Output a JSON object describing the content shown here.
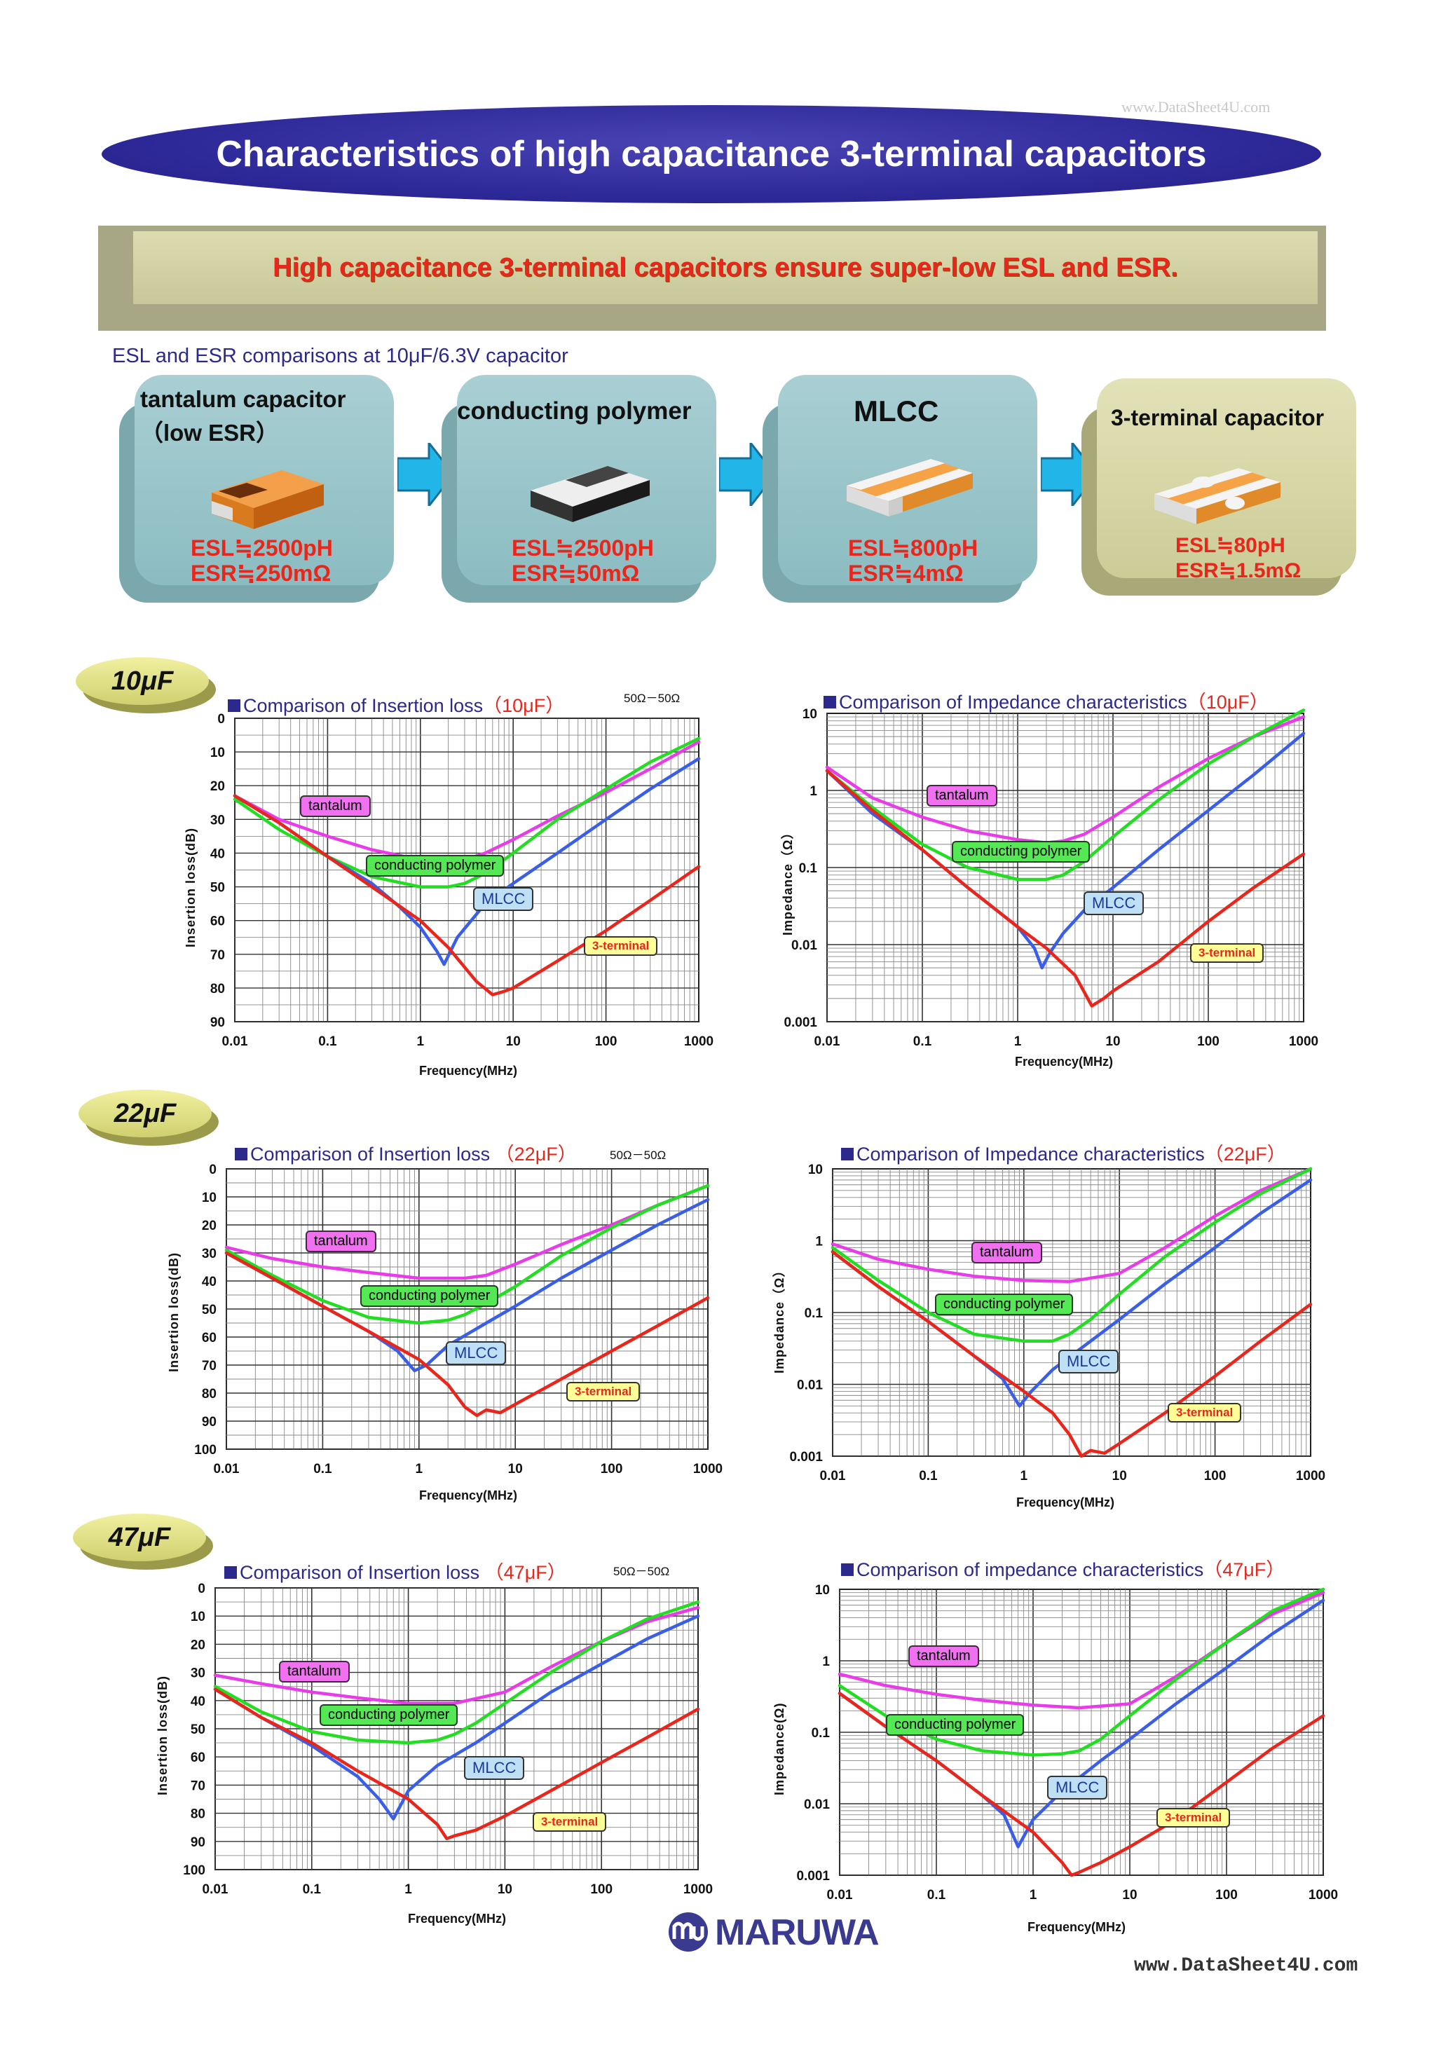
{
  "watermark_top": "www.DataSheet4U.com",
  "banner_title": "Characteristics of high capacitance 3-terminal capacitors",
  "subtitle_bar": "High capacitance 3-terminal capacitors ensure super-low ESL and ESR.",
  "comparison_title": "ESL and ESR comparisons at 10μF/6.3V capacitor",
  "cards": [
    {
      "title1": "tantalum capacitor",
      "title2": "（low ESR）",
      "esl": "ESL≒2500pH",
      "esr": "ESR≒250mΩ"
    },
    {
      "title1": "conducting polymer",
      "title2": "",
      "esl": "ESL≒2500pH",
      "esr": "ESR≒50mΩ"
    },
    {
      "title1": "MLCC",
      "title2": "",
      "esl": "ESL≒800pH",
      "esr": "ESR≒4mΩ"
    },
    {
      "title1": "3-terminal capacitor",
      "title2": "",
      "esl": "ESL≒80pH",
      "esr": "ESR≒1.5mΩ"
    }
  ],
  "colors": {
    "tantalum": "#e83ce8",
    "polymer": "#22dd22",
    "mlcc": "#3a5ee8",
    "mlcc_dark": "#1a2ad0",
    "three_terminal": "#e8261b",
    "banner": "#2f2a9a",
    "card_blue": "#9cc4c8",
    "card_olive": "#d8d8a8"
  },
  "icons": [
    "arrow-right-icon",
    "tantalum-chip-icon",
    "polymer-chip-icon",
    "mlcc-chip-icon",
    "three-terminal-chip-icon",
    "maruwa-logo-icon"
  ],
  "series_labels": {
    "tantalum": "tantalum",
    "polymer": "conducting polymer",
    "mlcc": "MLCC",
    "three_terminal": "3-terminal"
  },
  "rows": [
    {
      "badge": "10μF",
      "il_title_pre": "Comparison of Insertion loss",
      "il_title_val": "（10μF）",
      "il_condition": "50Ω－50Ω",
      "imp_title_pre": "Comparison of Impedance characteristics",
      "imp_title_val": "（10μF）"
    },
    {
      "badge": "22μF",
      "il_title_pre": "Comparison of Insertion loss ",
      "il_title_val": "（22μF）",
      "il_condition": "50Ω－50Ω",
      "imp_title_pre": "Comparison of Impedance characteristics",
      "imp_title_val": "（22μF）"
    },
    {
      "badge": "47μF",
      "il_title_pre": "Comparison of Insertion loss ",
      "il_title_val": "（47μF）",
      "il_condition": "50Ω－50Ω",
      "imp_title_pre": "Comparison of impedance characteristics",
      "imp_title_val": "（47μF）"
    }
  ],
  "axes": {
    "il_ylabel": "Insertion loss(dB)",
    "imp_ylabel": "Impedance（Ω）",
    "imp_ylabel_alt": "Impedance(Ω)",
    "xlabel": "Frequency(MHz)",
    "x_ticks": [
      "0.01",
      "0.1",
      "1",
      "10",
      "100",
      "1000"
    ],
    "il_ticks_90": [
      "0",
      "10",
      "20",
      "30",
      "40",
      "50",
      "60",
      "70",
      "80",
      "90"
    ],
    "il_ticks_100": [
      "0",
      "10",
      "20",
      "30",
      "40",
      "50",
      "60",
      "70",
      "80",
      "90",
      "100"
    ],
    "imp_ticks": [
      "10",
      "1",
      "0.1",
      "0.01",
      "0.001"
    ]
  },
  "chart_data": [
    {
      "type": "line",
      "title": "Comparison of Insertion loss（10μF）",
      "xlabel": "Frequency(MHz)",
      "ylabel": "Insertion loss(dB)",
      "x_scale": "log",
      "xlim": [
        0.01,
        1000
      ],
      "ylim": [
        0,
        90
      ],
      "y_inverted": true,
      "series": [
        {
          "name": "tantalum",
          "x": [
            0.01,
            0.03,
            0.1,
            0.3,
            1,
            2,
            3,
            5,
            10,
            30,
            100,
            300,
            1000
          ],
          "y": [
            23,
            30,
            35,
            39,
            42,
            43,
            42,
            40,
            36,
            29,
            22,
            15,
            7
          ]
        },
        {
          "name": "conducting polymer",
          "x": [
            0.01,
            0.03,
            0.1,
            0.3,
            1,
            2,
            3,
            5,
            10,
            30,
            100,
            300,
            1000
          ],
          "y": [
            24,
            33,
            41,
            47,
            50,
            50,
            49,
            46,
            40,
            30,
            21,
            13,
            6
          ]
        },
        {
          "name": "MLCC",
          "x": [
            0.01,
            0.03,
            0.1,
            0.3,
            0.6,
            1,
            1.5,
            1.8,
            2.5,
            5,
            10,
            30,
            100,
            300,
            1000
          ],
          "y": [
            23,
            31,
            41,
            49,
            56,
            62,
            69,
            73,
            65,
            55,
            49,
            40,
            30,
            21,
            12
          ]
        },
        {
          "name": "3-terminal",
          "x": [
            0.01,
            0.03,
            0.1,
            0.3,
            1,
            2,
            4,
            6,
            8,
            10,
            30,
            100,
            300,
            1000
          ],
          "y": [
            23,
            31,
            41,
            50,
            60,
            68,
            78,
            82,
            81,
            80,
            72,
            63,
            54,
            44
          ]
        }
      ]
    },
    {
      "type": "line",
      "title": "Comparison of Impedance characteristics（10μF）",
      "xlabel": "Frequency(MHz)",
      "ylabel": "Impedance（Ω）",
      "x_scale": "log",
      "y_scale": "log",
      "xlim": [
        0.01,
        1000
      ],
      "ylim": [
        0.001,
        10
      ],
      "series": [
        {
          "name": "tantalum",
          "x": [
            0.01,
            0.03,
            0.1,
            0.3,
            1,
            2,
            3,
            5,
            10,
            30,
            100,
            300,
            1000
          ],
          "y": [
            2,
            0.8,
            0.45,
            0.3,
            0.23,
            0.21,
            0.22,
            0.27,
            0.45,
            1.1,
            2.6,
            5,
            9
          ]
        },
        {
          "name": "conducting polymer",
          "x": [
            0.01,
            0.03,
            0.1,
            0.3,
            1,
            2,
            3,
            5,
            10,
            30,
            100,
            300,
            1000
          ],
          "y": [
            1.8,
            0.6,
            0.2,
            0.1,
            0.07,
            0.07,
            0.08,
            0.12,
            0.25,
            0.75,
            2.2,
            5,
            11
          ]
        },
        {
          "name": "MLCC",
          "x": [
            0.01,
            0.03,
            0.1,
            0.3,
            1,
            1.5,
            1.8,
            2.2,
            3,
            5,
            10,
            30,
            100,
            300,
            1000
          ],
          "y": [
            1.8,
            0.5,
            0.17,
            0.055,
            0.017,
            0.009,
            0.005,
            0.008,
            0.014,
            0.028,
            0.055,
            0.17,
            0.55,
            1.6,
            5.5
          ]
        },
        {
          "name": "3-terminal",
          "x": [
            0.01,
            0.03,
            0.1,
            0.3,
            1,
            2,
            4,
            6,
            8,
            10,
            30,
            100,
            300,
            1000
          ],
          "y": [
            1.8,
            0.55,
            0.17,
            0.055,
            0.017,
            0.009,
            0.004,
            0.0016,
            0.002,
            0.0025,
            0.006,
            0.02,
            0.055,
            0.15
          ]
        }
      ]
    },
    {
      "type": "line",
      "title": "Comparison of Insertion loss（22μF）",
      "xlabel": "Frequency(MHz)",
      "ylabel": "Insertion loss(dB)",
      "x_scale": "log",
      "xlim": [
        0.01,
        1000
      ],
      "ylim": [
        0,
        100
      ],
      "y_inverted": true,
      "series": [
        {
          "name": "tantalum",
          "x": [
            0.01,
            0.03,
            0.1,
            0.3,
            1,
            2,
            3,
            5,
            10,
            30,
            100,
            300,
            1000
          ],
          "y": [
            28,
            32,
            35,
            37,
            39,
            39,
            39,
            38,
            34,
            27,
            20,
            13,
            6
          ]
        },
        {
          "name": "conducting polymer",
          "x": [
            0.01,
            0.03,
            0.1,
            0.3,
            1,
            2,
            3,
            5,
            10,
            30,
            100,
            300,
            1000
          ],
          "y": [
            29,
            38,
            47,
            53,
            55,
            54,
            52,
            48,
            42,
            31,
            21,
            13,
            6
          ]
        },
        {
          "name": "MLCC",
          "x": [
            0.01,
            0.03,
            0.1,
            0.3,
            0.6,
            0.9,
            1.2,
            2,
            5,
            10,
            30,
            100,
            300,
            1000
          ],
          "y": [
            30,
            39,
            49,
            58,
            65,
            72,
            70,
            63,
            55,
            49,
            39,
            29,
            20,
            11
          ]
        },
        {
          "name": "3-terminal",
          "x": [
            0.01,
            0.03,
            0.1,
            0.3,
            1,
            2,
            3,
            4,
            5,
            7,
            10,
            30,
            100,
            300,
            1000
          ],
          "y": [
            30,
            39,
            49,
            58,
            68,
            77,
            85,
            88,
            86,
            87,
            84,
            75,
            65,
            56,
            46
          ]
        }
      ]
    },
    {
      "type": "line",
      "title": "Comparison of Impedance characteristics（22μF）",
      "xlabel": "Frequency(MHz)",
      "ylabel": "Impedance（Ω）",
      "x_scale": "log",
      "y_scale": "log",
      "xlim": [
        0.01,
        1000
      ],
      "ylim": [
        0.001,
        10
      ],
      "series": [
        {
          "name": "tantalum",
          "x": [
            0.01,
            0.03,
            0.1,
            0.3,
            1,
            3,
            10,
            30,
            100,
            300,
            1000
          ],
          "y": [
            0.9,
            0.55,
            0.4,
            0.32,
            0.28,
            0.27,
            0.35,
            0.8,
            2.2,
            5,
            10
          ]
        },
        {
          "name": "conducting polymer",
          "x": [
            0.01,
            0.03,
            0.1,
            0.3,
            1,
            2,
            3,
            5,
            10,
            30,
            100,
            300,
            1000
          ],
          "y": [
            0.8,
            0.28,
            0.1,
            0.05,
            0.04,
            0.04,
            0.05,
            0.08,
            0.18,
            0.6,
            1.8,
            4.5,
            10
          ]
        },
        {
          "name": "MLCC",
          "x": [
            0.01,
            0.03,
            0.1,
            0.3,
            0.6,
            0.9,
            1.2,
            2,
            5,
            10,
            30,
            100,
            300,
            1000
          ],
          "y": [
            0.7,
            0.23,
            0.075,
            0.025,
            0.012,
            0.005,
            0.008,
            0.016,
            0.04,
            0.08,
            0.25,
            0.8,
            2.4,
            7
          ]
        },
        {
          "name": "3-terminal",
          "x": [
            0.01,
            0.03,
            0.1,
            0.3,
            1,
            2,
            3,
            4,
            5,
            7,
            10,
            30,
            100,
            300,
            1000
          ],
          "y": [
            0.7,
            0.23,
            0.075,
            0.025,
            0.008,
            0.004,
            0.002,
            0.001,
            0.0012,
            0.0011,
            0.0015,
            0.004,
            0.013,
            0.04,
            0.13
          ]
        }
      ]
    },
    {
      "type": "line",
      "title": "Comparison of Insertion loss（47μF）",
      "xlabel": "Frequency(MHz)",
      "ylabel": "Insertion loss(dB)",
      "x_scale": "log",
      "xlim": [
        0.01,
        1000
      ],
      "ylim": [
        0,
        100
      ],
      "y_inverted": true,
      "series": [
        {
          "name": "tantalum",
          "x": [
            0.01,
            0.03,
            0.1,
            0.3,
            1,
            3,
            10,
            30,
            100,
            300,
            1000
          ],
          "y": [
            31,
            34,
            37,
            39,
            41,
            41,
            37,
            28,
            19,
            12,
            7
          ]
        },
        {
          "name": "conducting polymer",
          "x": [
            0.01,
            0.03,
            0.1,
            0.3,
            1,
            2,
            3,
            5,
            10,
            30,
            100,
            300,
            1000
          ],
          "y": [
            35,
            44,
            51,
            54,
            55,
            54,
            52,
            48,
            41,
            30,
            19,
            11,
            5
          ]
        },
        {
          "name": "MLCC",
          "x": [
            0.01,
            0.03,
            0.1,
            0.3,
            0.5,
            0.7,
            1,
            2,
            5,
            10,
            30,
            100,
            300,
            1000
          ],
          "y": [
            36,
            46,
            56,
            67,
            75,
            82,
            72,
            63,
            55,
            48,
            37,
            27,
            18,
            10
          ]
        },
        {
          "name": "3-terminal",
          "x": [
            0.01,
            0.03,
            0.1,
            0.3,
            1,
            2,
            2.5,
            3,
            5,
            10,
            30,
            100,
            300,
            1000
          ],
          "y": [
            36,
            46,
            55,
            65,
            75,
            84,
            89,
            88,
            86,
            81,
            72,
            62,
            53,
            43
          ]
        }
      ]
    },
    {
      "type": "line",
      "title": "Comparison of impedance characteristics（47μF）",
      "xlabel": "Frequency(MHz)",
      "ylabel": "Impedance(Ω)",
      "x_scale": "log",
      "y_scale": "log",
      "xlim": [
        0.01,
        1000
      ],
      "ylim": [
        0.001,
        10
      ],
      "series": [
        {
          "name": "tantalum",
          "x": [
            0.01,
            0.03,
            0.1,
            0.3,
            1,
            3,
            10,
            30,
            100,
            300,
            1000
          ],
          "y": [
            0.65,
            0.45,
            0.34,
            0.28,
            0.24,
            0.22,
            0.25,
            0.6,
            1.8,
            4.5,
            9
          ]
        },
        {
          "name": "conducting polymer",
          "x": [
            0.01,
            0.03,
            0.1,
            0.3,
            1,
            2,
            3,
            5,
            10,
            30,
            100,
            300,
            1000
          ],
          "y": [
            0.45,
            0.17,
            0.08,
            0.055,
            0.048,
            0.05,
            0.055,
            0.08,
            0.17,
            0.55,
            1.8,
            5,
            10
          ]
        },
        {
          "name": "MLCC",
          "x": [
            0.01,
            0.03,
            0.1,
            0.3,
            0.5,
            0.7,
            1,
            2,
            5,
            10,
            30,
            100,
            300,
            1000
          ],
          "y": [
            0.35,
            0.12,
            0.04,
            0.013,
            0.007,
            0.0025,
            0.006,
            0.015,
            0.04,
            0.08,
            0.25,
            0.8,
            2.4,
            7
          ]
        },
        {
          "name": "3-terminal",
          "x": [
            0.01,
            0.03,
            0.1,
            0.3,
            1,
            2,
            2.5,
            3,
            5,
            10,
            30,
            100,
            300,
            1000
          ],
          "y": [
            0.35,
            0.12,
            0.04,
            0.013,
            0.004,
            0.0015,
            0.001,
            0.0011,
            0.0015,
            0.0025,
            0.006,
            0.02,
            0.06,
            0.17
          ]
        }
      ]
    }
  ],
  "footer": {
    "logo_text": "MARUWA",
    "watermark": "www.DataSheet4U.com"
  }
}
